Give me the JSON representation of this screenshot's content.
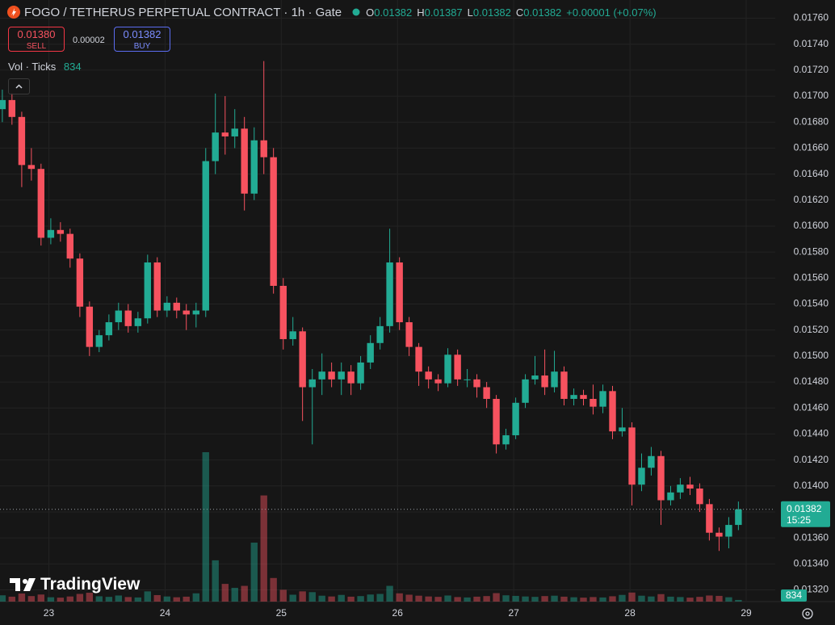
{
  "header": {
    "title": "FOGO / TETHERUS PERPETUAL CONTRACT · 1h · Gate",
    "ohlc": [
      {
        "key": "O",
        "value": 0.01382
      },
      {
        "key": "H",
        "value": 0.01387
      },
      {
        "key": "L",
        "value": 0.01382
      },
      {
        "key": "C",
        "value": 0.01382
      }
    ],
    "change": "+0.00001 (+0.07%)"
  },
  "trade": {
    "sell_price": "0.01380",
    "sell_label": "SELL",
    "spread": 2e-05,
    "buy_price": "0.01382",
    "buy_label": "BUY"
  },
  "indicator": {
    "label": "Vol · Ticks"
  },
  "branding": "TradingView",
  "chart_data": {
    "type": "candlestick",
    "x": [
      22.6,
      22.683,
      22.767,
      22.85,
      22.933,
      23.017,
      23.1,
      23.183,
      23.267,
      23.35,
      23.433,
      23.517,
      23.6,
      23.683,
      23.767,
      23.85,
      23.933,
      24.017,
      24.1,
      24.183,
      24.267,
      24.35,
      24.433,
      24.517,
      24.6,
      24.683,
      24.767,
      24.85,
      24.933,
      25.017,
      25.1,
      25.183,
      25.267,
      25.35,
      25.433,
      25.517,
      25.6,
      25.683,
      25.767,
      25.85,
      25.933,
      26.017,
      26.1,
      26.183,
      26.267,
      26.35,
      26.433,
      26.517,
      26.6,
      26.683,
      26.767,
      26.85,
      26.933,
      27.017,
      27.1,
      27.183,
      27.267,
      27.35,
      27.433,
      27.517,
      27.6,
      27.683,
      27.767,
      27.85,
      27.933,
      28.017,
      28.1,
      28.183,
      28.267,
      28.35,
      28.433,
      28.517,
      28.6,
      28.683,
      28.767,
      28.85,
      28.933
    ],
    "open": [
      0.0169,
      0.01697,
      0.01684,
      0.01647,
      0.01644,
      0.01591,
      0.01597,
      0.01594,
      0.01575,
      0.01538,
      0.01507,
      0.01516,
      0.01526,
      0.01535,
      0.01523,
      0.01529,
      0.01572,
      0.01535,
      0.01541,
      0.01535,
      0.01532,
      0.01535,
      0.0165,
      0.01672,
      0.01669,
      0.01675,
      0.01625,
      0.01666,
      0.01653,
      0.01554,
      0.01513,
      0.01519,
      0.01476,
      0.01482,
      0.01488,
      0.01482,
      0.01488,
      0.01479,
      0.01495,
      0.0151,
      0.01523,
      0.01572,
      0.01526,
      0.01507,
      0.01488,
      0.01482,
      0.01479,
      0.01501,
      0.01482,
      0.01482,
      0.01476,
      0.01467,
      0.01432,
      0.01439,
      0.01464,
      0.01482,
      0.01485,
      0.01476,
      0.01488,
      0.01467,
      0.0147,
      0.01467,
      0.01461,
      0.01473,
      0.01442,
      0.01445,
      0.01401,
      0.01414,
      0.01423,
      0.01389,
      0.01395,
      0.01401,
      0.01398,
      0.01386,
      0.01364,
      0.01361,
      0.0137
    ],
    "high": [
      0.01705,
      0.01702,
      0.01688,
      0.0166,
      0.01648,
      0.01606,
      0.01603,
      0.01598,
      0.01579,
      0.01542,
      0.0152,
      0.01532,
      0.01541,
      0.0154,
      0.01534,
      0.01578,
      0.01576,
      0.01546,
      0.01545,
      0.0154,
      0.01541,
      0.0166,
      0.01702,
      0.017,
      0.0169,
      0.01684,
      0.01676,
      0.01727,
      0.0166,
      0.0156,
      0.0153,
      0.01522,
      0.0149,
      0.01502,
      0.01495,
      0.01495,
      0.01493,
      0.015,
      0.01516,
      0.0153,
      0.01598,
      0.01576,
      0.0153,
      0.0151,
      0.01492,
      0.01486,
      0.01506,
      0.01505,
      0.0149,
      0.01486,
      0.0148,
      0.0147,
      0.01444,
      0.01468,
      0.01486,
      0.015,
      0.01505,
      0.01504,
      0.01492,
      0.01475,
      0.01474,
      0.01478,
      0.01478,
      0.01477,
      0.0146,
      0.01449,
      0.01425,
      0.0143,
      0.01427,
      0.014,
      0.01406,
      0.01407,
      0.01402,
      0.0139,
      0.01368,
      0.01376,
      0.01388
    ],
    "low": [
      0.0168,
      0.01678,
      0.0163,
      0.01635,
      0.01585,
      0.01586,
      0.01588,
      0.01568,
      0.0153,
      0.015,
      0.01503,
      0.01512,
      0.0152,
      0.01518,
      0.01518,
      0.01525,
      0.0153,
      0.0153,
      0.01529,
      0.0152,
      0.01522,
      0.0153,
      0.0164,
      0.01655,
      0.0166,
      0.01612,
      0.0162,
      0.0164,
      0.01548,
      0.01505,
      0.01508,
      0.0145,
      0.01432,
      0.0147,
      0.01476,
      0.0147,
      0.0147,
      0.01474,
      0.0149,
      0.01505,
      0.01518,
      0.0152,
      0.015,
      0.01477,
      0.01475,
      0.01473,
      0.01476,
      0.01477,
      0.01476,
      0.01468,
      0.0146,
      0.01425,
      0.01428,
      0.01436,
      0.0146,
      0.01478,
      0.0147,
      0.01472,
      0.01462,
      0.01462,
      0.01462,
      0.01455,
      0.01456,
      0.01436,
      0.01438,
      0.01385,
      0.01396,
      0.01408,
      0.0137,
      0.01385,
      0.0139,
      0.01393,
      0.0138,
      0.01358,
      0.0135,
      0.01352,
      0.01366
    ],
    "close": [
      0.01697,
      0.01684,
      0.01647,
      0.01644,
      0.01591,
      0.01597,
      0.01594,
      0.01575,
      0.01538,
      0.01507,
      0.01516,
      0.01526,
      0.01535,
      0.01523,
      0.01529,
      0.01572,
      0.01535,
      0.01541,
      0.01535,
      0.01532,
      0.01535,
      0.0165,
      0.01672,
      0.01669,
      0.01675,
      0.01625,
      0.01666,
      0.01653,
      0.01554,
      0.01513,
      0.01519,
      0.01476,
      0.01482,
      0.01488,
      0.01482,
      0.01488,
      0.01479,
      0.01495,
      0.0151,
      0.01523,
      0.01572,
      0.01526,
      0.01507,
      0.01488,
      0.01482,
      0.01479,
      0.01501,
      0.01482,
      0.01482,
      0.01476,
      0.01467,
      0.01432,
      0.01439,
      0.01464,
      0.01482,
      0.01485,
      0.01476,
      0.01488,
      0.01467,
      0.0147,
      0.01467,
      0.01461,
      0.01473,
      0.01442,
      0.01445,
      0.01401,
      0.01414,
      0.01423,
      0.01389,
      0.01395,
      0.01401,
      0.01398,
      0.01386,
      0.01364,
      0.01361,
      0.0137,
      0.01382
    ],
    "volume": [
      3200,
      2500,
      4100,
      2800,
      3600,
      2200,
      2000,
      2600,
      3900,
      4500,
      2700,
      2400,
      3100,
      2300,
      2100,
      5200,
      3300,
      2600,
      2200,
      2500,
      4200,
      76000,
      21000,
      9000,
      7000,
      8000,
      30000,
      54000,
      12000,
      6000,
      3500,
      5200,
      4800,
      3000,
      2600,
      3400,
      2500,
      2800,
      3600,
      3900,
      8000,
      4200,
      3500,
      3000,
      2600,
      2400,
      3100,
      2300,
      2100,
      2500,
      2800,
      4300,
      3200,
      2900,
      2600,
      2400,
      2800,
      3000,
      2500,
      2200,
      2000,
      2300,
      2100,
      2700,
      3400,
      4600,
      3000,
      2600,
      3800,
      2500,
      2300,
      2000,
      2400,
      3100,
      2900,
      2200,
      834
    ],
    "up_color": "#22ab94",
    "down_color": "#f7525f",
    "xlim": [
      22.58,
      29.25
    ],
    "xticks": [
      23,
      24,
      25,
      26,
      27,
      28,
      29
    ],
    "ylim": [
      0.01311,
      0.01774
    ],
    "yticks": [
      {
        "value": 0.0132,
        "label": "0.01320"
      },
      {
        "value": 0.0134,
        "label": "0.01340"
      },
      {
        "value": 0.0136,
        "label": "0.01360"
      },
      {
        "value": 0.0138,
        "label": "0.01380"
      },
      {
        "value": 0.014,
        "label": "0.01400"
      },
      {
        "value": 0.0142,
        "label": "0.01420"
      },
      {
        "value": 0.0144,
        "label": "0.01440"
      },
      {
        "value": 0.0146,
        "label": "0.01460"
      },
      {
        "value": 0.0148,
        "label": "0.01480"
      },
      {
        "value": 0.015,
        "label": "0.01500"
      },
      {
        "value": 0.0152,
        "label": "0.01520"
      },
      {
        "value": 0.0154,
        "label": "0.01540"
      },
      {
        "value": 0.0156,
        "label": "0.01560"
      },
      {
        "value": 0.0158,
        "label": "0.01580"
      },
      {
        "value": 0.016,
        "label": "0.01600"
      },
      {
        "value": 0.0162,
        "label": "0.01620"
      },
      {
        "value": 0.0164,
        "label": "0.01640"
      },
      {
        "value": 0.0166,
        "label": "0.01660"
      },
      {
        "value": 0.0168,
        "label": "0.01680"
      },
      {
        "value": 0.017,
        "label": "0.01700"
      },
      {
        "value": 0.0172,
        "label": "0.01720"
      },
      {
        "value": 0.0174,
        "label": "0.01740"
      },
      {
        "value": 0.0176,
        "label": "0.01760"
      }
    ],
    "grid": true,
    "last_price": 0.01382,
    "countdown": "15:25"
  }
}
